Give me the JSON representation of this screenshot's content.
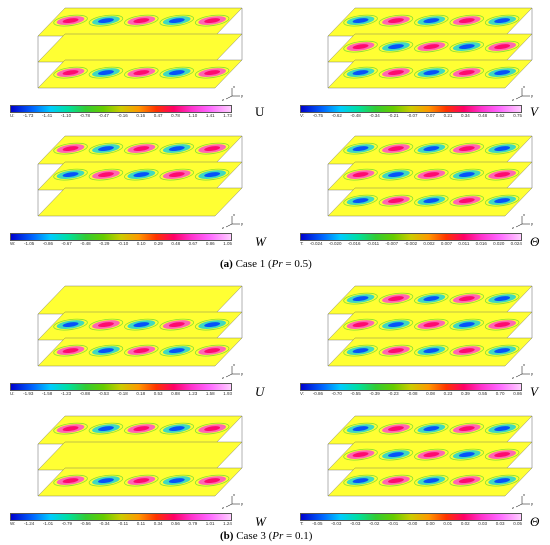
{
  "figure": {
    "case1": {
      "caption_label": "(a)",
      "caption_text": "Case 1 (",
      "pr_symbol": "Pr",
      "pr_value": " = 0.5)",
      "panels": [
        {
          "var": "U",
          "prefix": "U",
          "ticks": [
            "-1.73",
            "-1.41",
            "-1.10",
            "-0.78",
            "-0.47",
            "-0.16",
            "0.16",
            "0.47",
            "0.78",
            "1.10",
            "1.41",
            "1.73"
          ]
        },
        {
          "var": "V",
          "prefix": "V",
          "ticks": [
            "-0.75",
            "-0.62",
            "-0.48",
            "-0.34",
            "-0.21",
            "-0.07",
            "0.07",
            "0.21",
            "0.34",
            "0.48",
            "0.62",
            "0.75"
          ]
        },
        {
          "var": "W",
          "prefix": "W",
          "ticks": [
            "-1.05",
            "-0.86",
            "-0.67",
            "-0.48",
            "-0.29",
            "-0.10",
            "0.10",
            "0.29",
            "0.48",
            "0.67",
            "0.86",
            "1.05"
          ]
        },
        {
          "var": "Θ",
          "prefix": "T",
          "ticks": [
            "-0.024",
            "-0.020",
            "-0.016",
            "-0.011",
            "-0.007",
            "-0.002",
            "0.002",
            "0.007",
            "0.011",
            "0.016",
            "0.020",
            "0.024"
          ]
        }
      ]
    },
    "case3": {
      "caption_label": "(b)",
      "caption_text": "Case 3 (",
      "pr_symbol": "Pr",
      "pr_value": " = 0.1)",
      "panels": [
        {
          "var": "U",
          "prefix": "U",
          "ticks": [
            "-1.93",
            "-1.58",
            "-1.23",
            "-0.88",
            "-0.53",
            "-0.18",
            "0.18",
            "0.53",
            "0.88",
            "1.23",
            "1.58",
            "1.93"
          ]
        },
        {
          "var": "V",
          "prefix": "V",
          "ticks": [
            "-0.86",
            "-0.70",
            "-0.55",
            "-0.39",
            "-0.23",
            "-0.08",
            "0.08",
            "0.23",
            "0.39",
            "0.55",
            "0.70",
            "0.86"
          ]
        },
        {
          "var": "W",
          "prefix": "W",
          "ticks": [
            "-1.24",
            "-1.01",
            "-0.79",
            "-0.56",
            "-0.34",
            "-0.11",
            "0.11",
            "0.34",
            "0.56",
            "0.79",
            "1.01",
            "1.24"
          ]
        },
        {
          "var": "Θ",
          "prefix": "T",
          "ticks": [
            "-0.05",
            "-0.03",
            "-0.03",
            "-0.02",
            "-0.01",
            "-0.00",
            "0.00",
            "0.01",
            "0.02",
            "0.03",
            "0.03",
            "0.05"
          ]
        }
      ]
    },
    "axis_labels": {
      "x": "x",
      "y": "y",
      "z": "z"
    },
    "colors": {
      "plane": "#ffff33",
      "frame": "#666666",
      "hot": "#ff0066",
      "cold": "#0044ff",
      "cyan": "#00ccee",
      "green": "#33cc33",
      "magenta": "#ff33dd"
    }
  }
}
